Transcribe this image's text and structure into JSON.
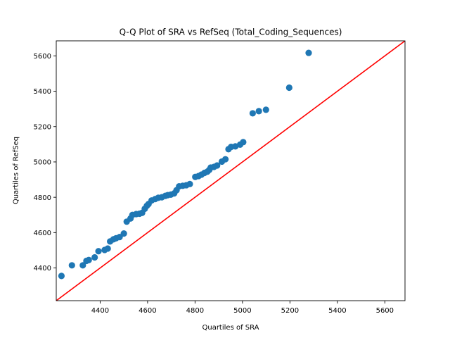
{
  "chart_data": {
    "type": "scatter",
    "title": "Q-Q Plot of SRA vs RefSeq (Total_Coding_Sequences)",
    "xlabel": "Quartiles of SRA",
    "ylabel": "Quartiles of RefSeq",
    "xlim": [
      4215,
      5685
    ],
    "ylim": [
      4215,
      5685
    ],
    "xticks": [
      4400,
      4600,
      4800,
      5000,
      5200,
      5400,
      5600
    ],
    "yticks": [
      4400,
      4600,
      4800,
      5000,
      5200,
      5400,
      5600
    ],
    "grid": false,
    "legend": "none",
    "point_color": "#1f77b4",
    "reference_line": {
      "color": "#ff0000",
      "from": [
        4215,
        4215
      ],
      "to": [
        5685,
        5685
      ]
    },
    "points": [
      [
        4237,
        4355
      ],
      [
        4281,
        4415
      ],
      [
        4327,
        4415
      ],
      [
        4342,
        4440
      ],
      [
        4352,
        4445
      ],
      [
        4377,
        4460
      ],
      [
        4393,
        4495
      ],
      [
        4419,
        4502
      ],
      [
        4432,
        4510
      ],
      [
        4442,
        4550
      ],
      [
        4456,
        4562
      ],
      [
        4467,
        4568
      ],
      [
        4482,
        4575
      ],
      [
        4500,
        4595
      ],
      [
        4512,
        4662
      ],
      [
        4528,
        4680
      ],
      [
        4536,
        4700
      ],
      [
        4552,
        4705
      ],
      [
        4566,
        4707
      ],
      [
        4577,
        4712
      ],
      [
        4588,
        4735
      ],
      [
        4597,
        4752
      ],
      [
        4604,
        4762
      ],
      [
        4617,
        4782
      ],
      [
        4632,
        4790
      ],
      [
        4645,
        4797
      ],
      [
        4660,
        4800
      ],
      [
        4675,
        4808
      ],
      [
        4685,
        4812
      ],
      [
        4698,
        4815
      ],
      [
        4712,
        4822
      ],
      [
        4722,
        4840
      ],
      [
        4733,
        4862
      ],
      [
        4748,
        4865
      ],
      [
        4763,
        4868
      ],
      [
        4778,
        4875
      ],
      [
        4801,
        4915
      ],
      [
        4815,
        4920
      ],
      [
        4827,
        4928
      ],
      [
        4840,
        4938
      ],
      [
        4852,
        4945
      ],
      [
        4860,
        4955
      ],
      [
        4866,
        4968
      ],
      [
        4880,
        4972
      ],
      [
        4893,
        4980
      ],
      [
        4913,
        5002
      ],
      [
        4928,
        5015
      ],
      [
        4941,
        5072
      ],
      [
        4952,
        5085
      ],
      [
        4970,
        5088
      ],
      [
        4990,
        5098
      ],
      [
        5003,
        5112
      ],
      [
        5043,
        5275
      ],
      [
        5069,
        5287
      ],
      [
        5099,
        5295
      ],
      [
        5197,
        5420
      ],
      [
        5279,
        5617
      ]
    ]
  }
}
